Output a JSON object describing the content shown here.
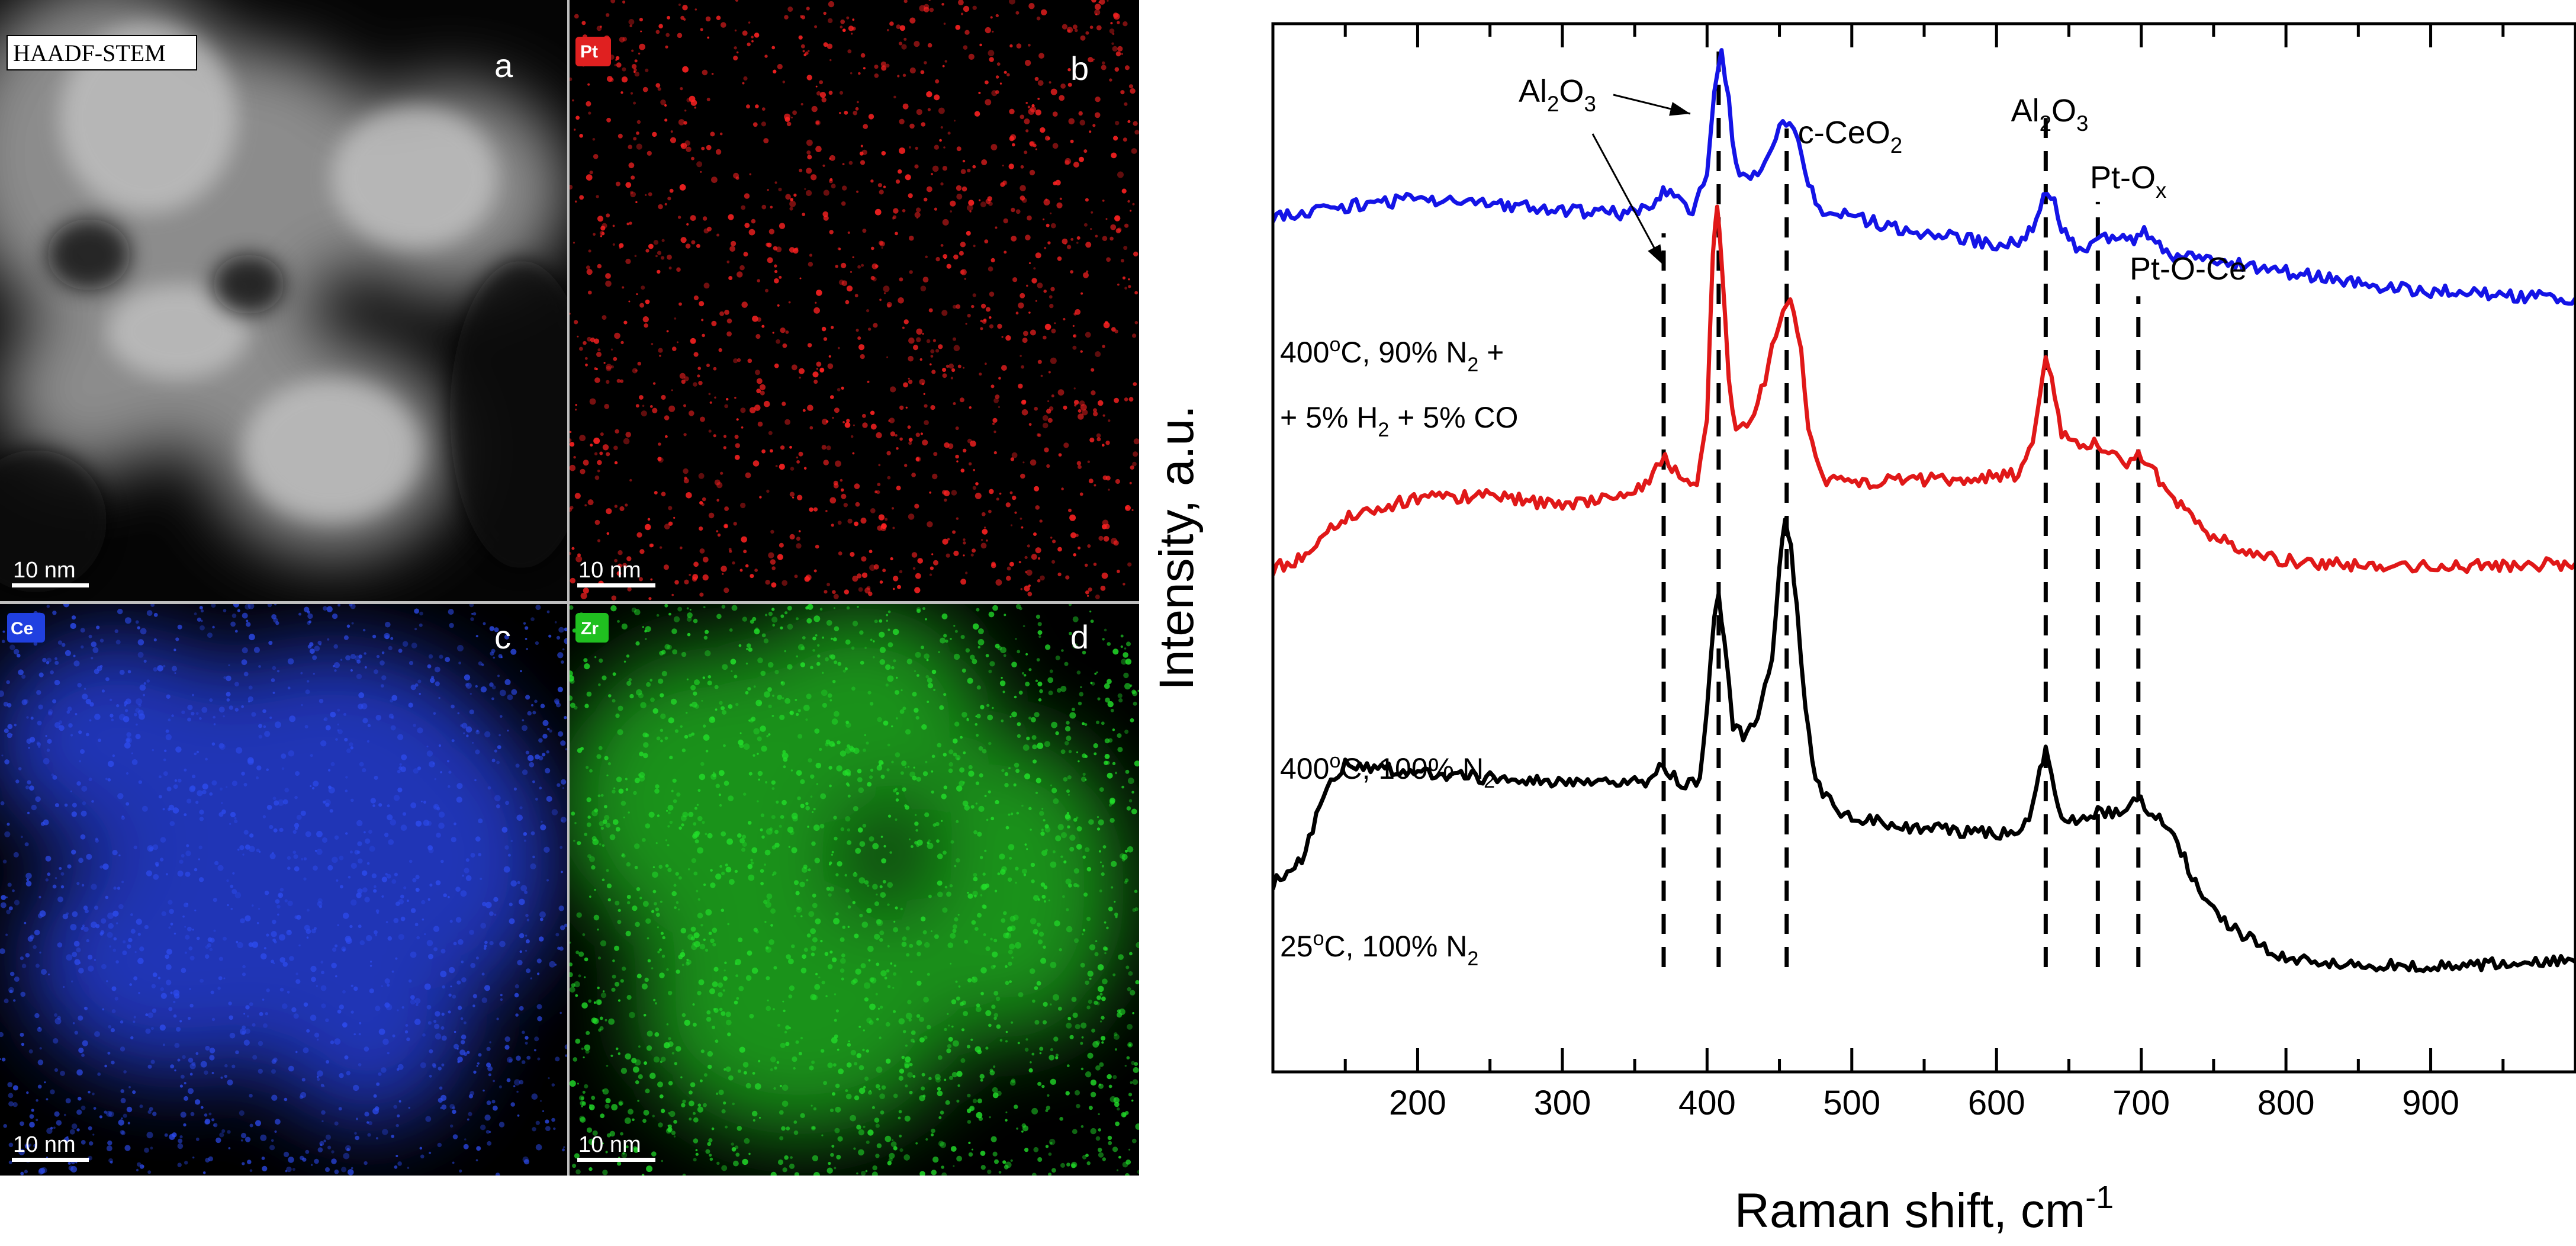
{
  "figure": {
    "panels": [
      {
        "id": "a",
        "letter": "a",
        "tag": "HAADF-STEM",
        "scale_label": "10 nm",
        "kind": "haadf"
      },
      {
        "id": "b",
        "letter": "b",
        "tag": "Pt",
        "scale_label": "10 nm",
        "kind": "map",
        "color": "#ff2222",
        "tag_color": "#e02020"
      },
      {
        "id": "c",
        "letter": "c",
        "tag": "Ce",
        "scale_label": "10 nm",
        "kind": "map",
        "color": "#2d4cf0",
        "tag_color": "#2040e0"
      },
      {
        "id": "d",
        "letter": "d",
        "tag": "Zr",
        "scale_label": "10 nm",
        "kind": "map",
        "color": "#22e02a",
        "tag_color": "#20c020"
      }
    ]
  },
  "chart_data": {
    "type": "line",
    "title": "",
    "xlabel": "Raman shift, cm",
    "xlabel_sup": "-1",
    "ylabel": "Intensity, a.u.",
    "xlim": [
      100,
      1000
    ],
    "ylim": [
      0,
      1
    ],
    "x_ticks": [
      200,
      300,
      400,
      500,
      600,
      700,
      800,
      900
    ],
    "grid": false,
    "series": [
      {
        "name": "400oC, 90% N2 + 5% H2 + 5% CO",
        "color": "#1414e6",
        "label_lines": [
          [
            {
              "t": "400"
            },
            {
              "t": "o",
              "sup": true
            },
            {
              "t": "C, 90% N"
            },
            {
              "t": "2",
              "sub": true
            },
            {
              "t": " +"
            }
          ],
          [
            {
              "t": "+ 5% H"
            },
            {
              "t": "2",
              "sub": true
            },
            {
              "t": " + 5% CO"
            }
          ]
        ],
        "points": [
          [
            100,
            0.817
          ],
          [
            150,
            0.826
          ],
          [
            200,
            0.833
          ],
          [
            250,
            0.829
          ],
          [
            300,
            0.822
          ],
          [
            340,
            0.819
          ],
          [
            360,
            0.822
          ],
          [
            365,
            0.832
          ],
          [
            372,
            0.842
          ],
          [
            380,
            0.832
          ],
          [
            390,
            0.822
          ],
          [
            400,
            0.86
          ],
          [
            405,
            0.93
          ],
          [
            410,
            0.972
          ],
          [
            415,
            0.925
          ],
          [
            420,
            0.862
          ],
          [
            430,
            0.848
          ],
          [
            440,
            0.872
          ],
          [
            450,
            0.9
          ],
          [
            457,
            0.905
          ],
          [
            463,
            0.885
          ],
          [
            470,
            0.845
          ],
          [
            480,
            0.822
          ],
          [
            500,
            0.815
          ],
          [
            550,
            0.8
          ],
          [
            600,
            0.79
          ],
          [
            615,
            0.79
          ],
          [
            625,
            0.805
          ],
          [
            630,
            0.828
          ],
          [
            635,
            0.84
          ],
          [
            640,
            0.832
          ],
          [
            645,
            0.805
          ],
          [
            655,
            0.785
          ],
          [
            665,
            0.79
          ],
          [
            675,
            0.795
          ],
          [
            685,
            0.792
          ],
          [
            695,
            0.795
          ],
          [
            702,
            0.802
          ],
          [
            710,
            0.795
          ],
          [
            720,
            0.78
          ],
          [
            750,
            0.775
          ],
          [
            800,
            0.763
          ],
          [
            850,
            0.752
          ],
          [
            900,
            0.745
          ],
          [
            950,
            0.741
          ],
          [
            1000,
            0.738
          ]
        ]
      },
      {
        "name": "400oC, 100% N2",
        "color": "#e01818",
        "label_lines": [
          [
            {
              "t": "400"
            },
            {
              "t": "o",
              "sup": true
            },
            {
              "t": "C, 100% N"
            },
            {
              "t": "2",
              "sub": true
            }
          ]
        ],
        "points": [
          [
            100,
            0.48
          ],
          [
            120,
            0.49
          ],
          [
            150,
            0.53
          ],
          [
            200,
            0.547
          ],
          [
            250,
            0.55
          ],
          [
            300,
            0.54
          ],
          [
            340,
            0.55
          ],
          [
            360,
            0.56
          ],
          [
            365,
            0.575
          ],
          [
            371,
            0.585
          ],
          [
            378,
            0.575
          ],
          [
            384,
            0.56
          ],
          [
            393,
            0.562
          ],
          [
            400,
            0.62
          ],
          [
            404,
            0.78
          ],
          [
            407,
            0.828
          ],
          [
            410,
            0.77
          ],
          [
            415,
            0.66
          ],
          [
            420,
            0.615
          ],
          [
            430,
            0.618
          ],
          [
            440,
            0.66
          ],
          [
            450,
            0.718
          ],
          [
            455,
            0.737
          ],
          [
            460,
            0.73
          ],
          [
            465,
            0.685
          ],
          [
            470,
            0.61
          ],
          [
            480,
            0.565
          ],
          [
            500,
            0.562
          ],
          [
            550,
            0.565
          ],
          [
            600,
            0.568
          ],
          [
            615,
            0.57
          ],
          [
            625,
            0.6
          ],
          [
            630,
            0.65
          ],
          [
            634,
            0.687
          ],
          [
            638,
            0.66
          ],
          [
            645,
            0.61
          ],
          [
            655,
            0.602
          ],
          [
            665,
            0.6
          ],
          [
            680,
            0.59
          ],
          [
            690,
            0.582
          ],
          [
            698,
            0.59
          ],
          [
            705,
            0.58
          ],
          [
            715,
            0.56
          ],
          [
            730,
            0.535
          ],
          [
            750,
            0.51
          ],
          [
            780,
            0.493
          ],
          [
            800,
            0.488
          ],
          [
            850,
            0.483
          ],
          [
            900,
            0.482
          ],
          [
            950,
            0.483
          ],
          [
            1000,
            0.485
          ]
        ]
      },
      {
        "name": "25oC, 100% N2",
        "color": "#000000",
        "label_lines": [
          [
            {
              "t": "25"
            },
            {
              "t": "o",
              "sup": true
            },
            {
              "t": "C, 100% N"
            },
            {
              "t": "2",
              "sub": true
            }
          ]
        ],
        "points": [
          [
            100,
            0.18
          ],
          [
            120,
            0.205
          ],
          [
            140,
            0.28
          ],
          [
            150,
            0.292
          ],
          [
            170,
            0.29
          ],
          [
            200,
            0.285
          ],
          [
            250,
            0.28
          ],
          [
            300,
            0.275
          ],
          [
            340,
            0.275
          ],
          [
            360,
            0.278
          ],
          [
            367,
            0.292
          ],
          [
            372,
            0.285
          ],
          [
            385,
            0.275
          ],
          [
            395,
            0.278
          ],
          [
            400,
            0.35
          ],
          [
            405,
            0.44
          ],
          [
            408,
            0.452
          ],
          [
            412,
            0.41
          ],
          [
            418,
            0.33
          ],
          [
            425,
            0.32
          ],
          [
            435,
            0.335
          ],
          [
            445,
            0.4
          ],
          [
            450,
            0.48
          ],
          [
            454,
            0.53
          ],
          [
            458,
            0.5
          ],
          [
            462,
            0.44
          ],
          [
            468,
            0.35
          ],
          [
            475,
            0.275
          ],
          [
            490,
            0.25
          ],
          [
            500,
            0.242
          ],
          [
            550,
            0.232
          ],
          [
            600,
            0.228
          ],
          [
            615,
            0.228
          ],
          [
            625,
            0.25
          ],
          [
            630,
            0.285
          ],
          [
            634,
            0.31
          ],
          [
            638,
            0.285
          ],
          [
            645,
            0.245
          ],
          [
            660,
            0.24
          ],
          [
            670,
            0.25
          ],
          [
            680,
            0.245
          ],
          [
            690,
            0.25
          ],
          [
            697,
            0.262
          ],
          [
            705,
            0.248
          ],
          [
            715,
            0.24
          ],
          [
            725,
            0.22
          ],
          [
            740,
            0.17
          ],
          [
            760,
            0.14
          ],
          [
            790,
            0.115
          ],
          [
            800,
            0.11
          ],
          [
            850,
            0.103
          ],
          [
            900,
            0.1
          ],
          [
            950,
            0.103
          ],
          [
            1000,
            0.105
          ]
        ]
      }
    ],
    "reference_lines": [
      {
        "x": 370,
        "ymin": 0.1,
        "ymax": 0.8
      },
      {
        "x": 408,
        "ymin": 0.1,
        "ymax": 0.98
      },
      {
        "x": 455,
        "ymin": 0.1,
        "ymax": 0.9
      },
      {
        "x": 634,
        "ymin": 0.1,
        "ymax": 0.91
      },
      {
        "x": 670,
        "ymin": 0.1,
        "ymax": 0.83
      },
      {
        "x": 698,
        "ymin": 0.1,
        "ymax": 0.74
      }
    ],
    "annotations": [
      {
        "id": "al2o3-left",
        "parts": [
          {
            "t": "Al"
          },
          {
            "t": "2",
            "sub": true
          },
          {
            "t": "O"
          },
          {
            "t": "3",
            "sub": true
          }
        ]
      },
      {
        "id": "c-ceo2",
        "parts": [
          {
            "t": "c-CeO"
          },
          {
            "t": "2",
            "sub": true
          }
        ]
      },
      {
        "id": "al2o3-right",
        "parts": [
          {
            "t": "Al"
          },
          {
            "t": "2",
            "sub": true
          },
          {
            "t": "O"
          },
          {
            "t": "3",
            "sub": true
          }
        ]
      },
      {
        "id": "pt-ox",
        "parts": [
          {
            "t": "Pt-O"
          },
          {
            "t": "x",
            "sub": true
          }
        ]
      },
      {
        "id": "pt-o-ce",
        "parts": [
          {
            "t": "Pt-O-Ce"
          }
        ]
      }
    ]
  }
}
